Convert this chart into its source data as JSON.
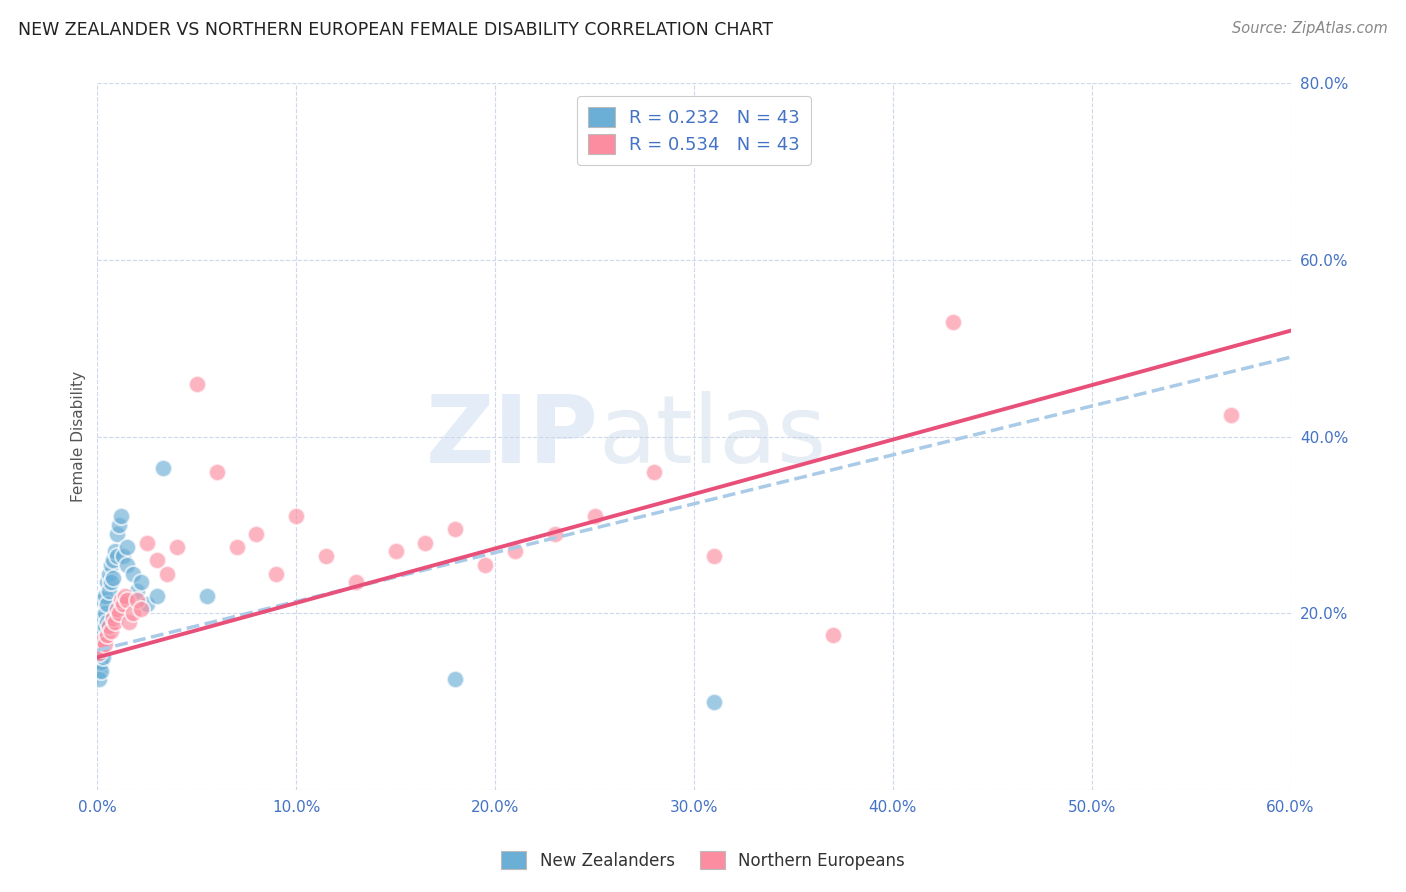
{
  "title": "NEW ZEALANDER VS NORTHERN EUROPEAN FEMALE DISABILITY CORRELATION CHART",
  "source": "Source: ZipAtlas.com",
  "ylabel": "Female Disability",
  "xlim": [
    0.0,
    0.6
  ],
  "ylim": [
    0.0,
    0.8
  ],
  "xticks": [
    0.0,
    0.1,
    0.2,
    0.3,
    0.4,
    0.5,
    0.6
  ],
  "yticks": [
    0.0,
    0.2,
    0.4,
    0.6,
    0.8
  ],
  "xtick_labels": [
    "0.0%",
    "10.0%",
    "20.0%",
    "30.0%",
    "40.0%",
    "50.0%",
    "60.0%"
  ],
  "ytick_labels": [
    "",
    "20.0%",
    "40.0%",
    "60.0%",
    "80.0%"
  ],
  "nz_color": "#6baed6",
  "ne_color": "#fc8da0",
  "nz_R": 0.232,
  "ne_R": 0.534,
  "N": 43,
  "watermark_part1": "ZIP",
  "watermark_part2": "atlas",
  "nz_x": [
    0.001,
    0.001,
    0.001,
    0.001,
    0.002,
    0.002,
    0.002,
    0.002,
    0.002,
    0.003,
    0.003,
    0.003,
    0.003,
    0.003,
    0.004,
    0.004,
    0.004,
    0.005,
    0.005,
    0.005,
    0.006,
    0.006,
    0.007,
    0.007,
    0.008,
    0.008,
    0.009,
    0.01,
    0.01,
    0.011,
    0.012,
    0.013,
    0.015,
    0.015,
    0.018,
    0.02,
    0.022,
    0.025,
    0.03,
    0.033,
    0.055,
    0.18,
    0.31
  ],
  "nz_y": [
    0.155,
    0.145,
    0.135,
    0.125,
    0.175,
    0.165,
    0.155,
    0.145,
    0.135,
    0.215,
    0.195,
    0.18,
    0.165,
    0.15,
    0.22,
    0.2,
    0.185,
    0.235,
    0.21,
    0.19,
    0.245,
    0.225,
    0.255,
    0.235,
    0.26,
    0.24,
    0.27,
    0.29,
    0.265,
    0.3,
    0.31,
    0.265,
    0.275,
    0.255,
    0.245,
    0.225,
    0.235,
    0.21,
    0.22,
    0.365,
    0.22,
    0.125,
    0.1
  ],
  "ne_x": [
    0.001,
    0.002,
    0.003,
    0.004,
    0.005,
    0.006,
    0.007,
    0.008,
    0.009,
    0.01,
    0.011,
    0.012,
    0.013,
    0.014,
    0.015,
    0.016,
    0.018,
    0.02,
    0.022,
    0.025,
    0.03,
    0.035,
    0.04,
    0.05,
    0.06,
    0.07,
    0.08,
    0.09,
    0.1,
    0.115,
    0.13,
    0.15,
    0.165,
    0.18,
    0.195,
    0.21,
    0.23,
    0.25,
    0.28,
    0.31,
    0.37,
    0.43,
    0.57
  ],
  "ne_y": [
    0.155,
    0.16,
    0.17,
    0.165,
    0.175,
    0.185,
    0.18,
    0.195,
    0.19,
    0.205,
    0.2,
    0.215,
    0.21,
    0.22,
    0.215,
    0.19,
    0.2,
    0.215,
    0.205,
    0.28,
    0.26,
    0.245,
    0.275,
    0.46,
    0.36,
    0.275,
    0.29,
    0.245,
    0.31,
    0.265,
    0.235,
    0.27,
    0.28,
    0.295,
    0.255,
    0.27,
    0.29,
    0.31,
    0.36,
    0.265,
    0.175,
    0.53,
    0.425
  ]
}
